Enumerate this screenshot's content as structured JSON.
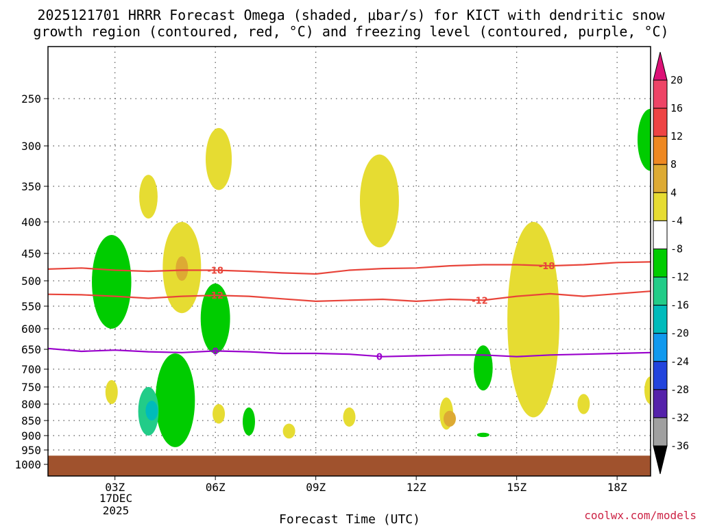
{
  "chart_data": {
    "type": "contour",
    "title_line1": "2025121701 HRRR Forecast Omega (shaded, μbar/s) for KICT with dendritic snow",
    "title_line2": "growth region (contoured, red, °C) and freezing level (contoured, purple, °C)",
    "xlabel": "Forecast Time (UTC)",
    "credit": "coolwx.com/models",
    "x_range_hours": [
      1,
      19
    ],
    "x_ticks": [
      {
        "hour": 3,
        "label": "03Z"
      },
      {
        "hour": 6,
        "label": "06Z"
      },
      {
        "hour": 9,
        "label": "09Z"
      },
      {
        "hour": 12,
        "label": "12Z"
      },
      {
        "hour": 15,
        "label": "15Z"
      },
      {
        "hour": 18,
        "label": "18Z"
      }
    ],
    "date_label": [
      "17DEC",
      "2025"
    ],
    "y_ticks": [
      {
        "p": 250,
        "label": "250"
      },
      {
        "p": 300,
        "label": "300"
      },
      {
        "p": 350,
        "label": "350"
      },
      {
        "p": 400,
        "label": "400"
      },
      {
        "p": 450,
        "label": "450"
      },
      {
        "p": 500,
        "label": "500"
      },
      {
        "p": 550,
        "label": "550"
      },
      {
        "p": 600,
        "label": "600"
      },
      {
        "p": 650,
        "label": "650"
      },
      {
        "p": 700,
        "label": "700"
      },
      {
        "p": 750,
        "label": "750"
      },
      {
        "p": 800,
        "label": "800"
      },
      {
        "p": 850,
        "label": "850"
      },
      {
        "p": 900,
        "label": "900"
      },
      {
        "p": 950,
        "label": "950"
      },
      {
        "p": 1000,
        "label": "1000"
      }
    ],
    "colorbar": {
      "labels": [
        "20",
        "16",
        "12",
        "8",
        "4",
        "-4",
        "-8",
        "-12",
        "-16",
        "-20",
        "-24",
        "-28",
        "-32",
        "-36"
      ],
      "colors": [
        "#ee4466",
        "#ee4444",
        "#ee8822",
        "#ddaa33",
        "#e6dc32",
        "#ffffff",
        "#00cc00",
        "#22cc88",
        "#00bbbb",
        "#1199ee",
        "#2244dd",
        "#5522aa",
        "#9922cc",
        "#a0a0a0"
      ],
      "top_arrow_color": "#dd1177",
      "bottom_arrow_color": "#000000"
    },
    "omega_regions": [
      {
        "level": "4 to 8",
        "color": "#e6dc32",
        "center_hour": 6.1,
        "p_range": [
          280,
          355
        ]
      },
      {
        "level": "4 to 8",
        "color": "#e6dc32",
        "center_hour": 4.0,
        "p_range": [
          335,
          395
        ]
      },
      {
        "level": "4 to 8",
        "color": "#e6dc32",
        "center_hour": 5.0,
        "p_range": [
          400,
          565
        ]
      },
      {
        "level": "8 to 12",
        "color": "#ddaa33",
        "center_hour": 5.0,
        "p_range": [
          455,
          500
        ]
      },
      {
        "level": "4 to 8",
        "color": "#e6dc32",
        "center_hour": 10.9,
        "p_range": [
          310,
          440
        ]
      },
      {
        "level": "4 to 8",
        "color": "#e6dc32",
        "center_hour": 15.5,
        "p_range": [
          400,
          840
        ]
      },
      {
        "level": "4 to 8",
        "color": "#e6dc32",
        "center_hour": 18.9,
        "p_range": [
          280,
          315
        ]
      },
      {
        "level": "4 to 8",
        "color": "#e6dc32",
        "center_hour": 2.9,
        "p_range": [
          730,
          800
        ]
      },
      {
        "level": "4 to 8",
        "color": "#e6dc32",
        "center_hour": 6.1,
        "p_range": [
          800,
          860
        ]
      },
      {
        "level": "4 to 8",
        "color": "#e6dc32",
        "center_hour": 8.2,
        "p_range": [
          860,
          910
        ]
      },
      {
        "level": "4 to 8",
        "color": "#e6dc32",
        "center_hour": 10.0,
        "p_range": [
          810,
          870
        ]
      },
      {
        "level": "4 to 8",
        "color": "#e6dc32",
        "center_hour": 12.9,
        "p_range": [
          780,
          880
        ]
      },
      {
        "level": "8 to 12",
        "color": "#ddaa33",
        "center_hour": 13.0,
        "p_range": [
          820,
          870
        ]
      },
      {
        "level": "4 to 8",
        "color": "#e6dc32",
        "center_hour": 17.0,
        "p_range": [
          770,
          830
        ]
      },
      {
        "level": "4 to 8",
        "color": "#e6dc32",
        "center_hour": 19.0,
        "p_range": [
          720,
          800
        ]
      },
      {
        "level": "-4 to -8",
        "color": "#00cc00",
        "center_hour": 2.9,
        "p_range": [
          420,
          600
        ]
      },
      {
        "level": "-4 to -8",
        "color": "#00cc00",
        "center_hour": 6.0,
        "p_range": [
          505,
          660
        ]
      },
      {
        "level": "-4 to -8",
        "color": "#00cc00",
        "center_hour": 4.8,
        "p_range": [
          660,
          940
        ]
      },
      {
        "level": "-8 to -12",
        "color": "#22cc88",
        "center_hour": 4.0,
        "p_range": [
          750,
          900
        ]
      },
      {
        "level": "-12 to -16",
        "color": "#00bbbb",
        "center_hour": 4.1,
        "p_range": [
          790,
          850
        ]
      },
      {
        "level": "-4 to -8",
        "color": "#00cc00",
        "center_hour": 7.0,
        "p_range": [
          810,
          900
        ]
      },
      {
        "level": "-4 to -8",
        "color": "#00cc00",
        "center_hour": 14.0,
        "p_range": [
          640,
          760
        ]
      },
      {
        "level": "-4 to -8",
        "color": "#00cc00",
        "center_hour": 14.0,
        "p_range": [
          890,
          905
        ]
      },
      {
        "level": "-4 to -8",
        "color": "#00cc00",
        "center_hour": 19.0,
        "p_range": [
          260,
          330
        ]
      }
    ],
    "temperature_contours": [
      {
        "value": -18,
        "label": "-18",
        "color": "#e8443a",
        "points": [
          [
            1,
            478
          ],
          [
            2,
            476
          ],
          [
            3,
            480
          ],
          [
            4,
            482
          ],
          [
            5,
            480
          ],
          [
            6,
            480
          ],
          [
            7,
            482
          ],
          [
            8,
            485
          ],
          [
            9,
            487
          ],
          [
            10,
            480
          ],
          [
            11,
            477
          ],
          [
            12,
            476
          ],
          [
            13,
            472
          ],
          [
            14,
            470
          ],
          [
            15,
            470
          ],
          [
            16,
            472
          ],
          [
            17,
            470
          ],
          [
            18,
            466
          ],
          [
            19,
            465
          ]
        ],
        "label_hours": [
          6.0,
          15.9
        ]
      },
      {
        "value": -12,
        "label": "-12",
        "color": "#e8443a",
        "points": [
          [
            1,
            526
          ],
          [
            2,
            527
          ],
          [
            3,
            530
          ],
          [
            4,
            534
          ],
          [
            5,
            530
          ],
          [
            6,
            528
          ],
          [
            7,
            530
          ],
          [
            8,
            535
          ],
          [
            9,
            540
          ],
          [
            10,
            538
          ],
          [
            11,
            536
          ],
          [
            12,
            540
          ],
          [
            13,
            536
          ],
          [
            14,
            538
          ],
          [
            15,
            530
          ],
          [
            16,
            525
          ],
          [
            17,
            530
          ],
          [
            18,
            525
          ],
          [
            19,
            520
          ]
        ],
        "label_hours": [
          6.0,
          13.9
        ]
      },
      {
        "value": 0,
        "label": "0",
        "color": "#9900cc",
        "points": [
          [
            1,
            648
          ],
          [
            2,
            655
          ],
          [
            3,
            652
          ],
          [
            4,
            656
          ],
          [
            5,
            658
          ],
          [
            6,
            654
          ],
          [
            7,
            656
          ],
          [
            8,
            660
          ],
          [
            9,
            660
          ],
          [
            10,
            662
          ],
          [
            11,
            668
          ],
          [
            12,
            666
          ],
          [
            13,
            664
          ],
          [
            14,
            664
          ],
          [
            15,
            668
          ],
          [
            16,
            664
          ],
          [
            17,
            662
          ],
          [
            18,
            660
          ],
          [
            19,
            658
          ]
        ],
        "label_hours": [
          6.0,
          10.9
        ]
      }
    ],
    "ground": {
      "color": "#a0522d",
      "p_top": 960
    }
  }
}
